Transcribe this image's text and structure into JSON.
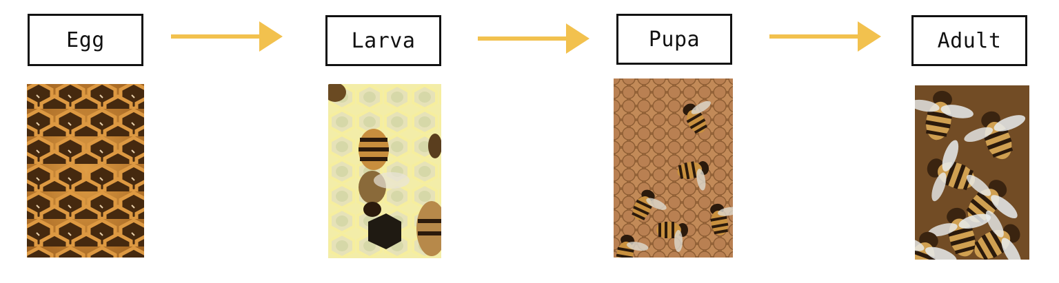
{
  "stages": [
    {
      "label": "Egg",
      "photo": "honeycomb-empty-cells-photo"
    },
    {
      "label": "Larva",
      "photo": "bee-on-larva-cells-photo"
    },
    {
      "label": "Pupa",
      "photo": "bees-on-capped-pupa-cells-photo"
    },
    {
      "label": "Adult",
      "photo": "adult-bees-cluster-photo"
    }
  ],
  "colors": {
    "arrow": "#F2C14E",
    "box_border": "#111111",
    "honeycomb_wax": "#D89A3E",
    "cell_dark": "#3A2612",
    "larva_wax": "#EFE7B6",
    "capped_cell": "#B07A4A",
    "bee_stripe_dark": "#2B1A0C",
    "bee_body": "#C98B3A"
  },
  "icons": {
    "arrow": "arrow-right-icon"
  }
}
